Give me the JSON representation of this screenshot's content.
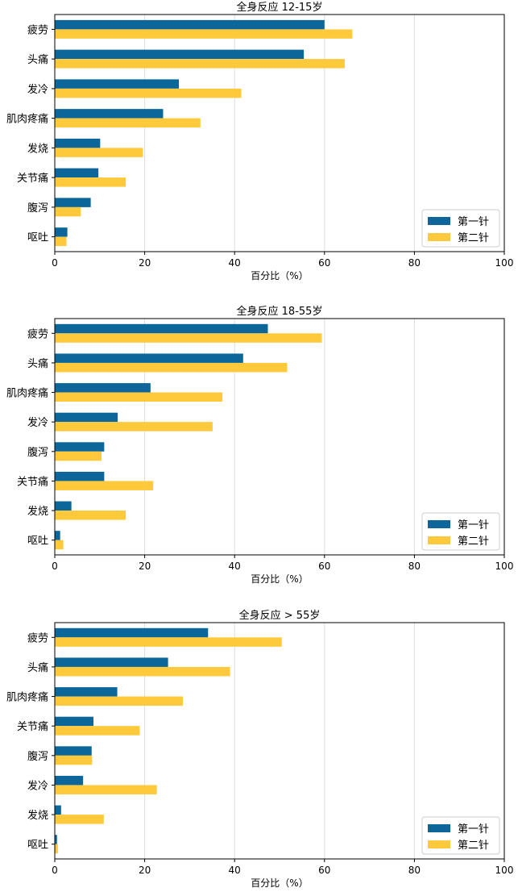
{
  "chart_data": [
    {
      "type": "bar",
      "orientation": "horizontal",
      "title": "全身反应 12-15岁",
      "xlabel": "百分比（%）",
      "ylabel": "",
      "xlim": [
        0,
        100
      ],
      "xticks": [
        0,
        20,
        40,
        60,
        80,
        100
      ],
      "grid": "vertical",
      "legend_position": "bottom-right",
      "categories": [
        "疲劳",
        "头痛",
        "发冷",
        "肌肉疼痛",
        "发烧",
        "关节痛",
        "腹泻",
        "呕吐"
      ],
      "series": [
        {
          "name": "第一针",
          "color": "#0d6699",
          "values": [
            60,
            55.4,
            27.6,
            24.1,
            10.1,
            9.7,
            8.0,
            2.8
          ]
        },
        {
          "name": "第二针",
          "color": "#ffc93c",
          "values": [
            66.2,
            64.5,
            41.5,
            32.4,
            19.6,
            15.8,
            5.8,
            2.6
          ]
        }
      ]
    },
    {
      "type": "bar",
      "orientation": "horizontal",
      "title": "全身反应 18-55岁",
      "xlabel": "百分比（%）",
      "ylabel": "",
      "xlim": [
        0,
        100
      ],
      "xticks": [
        0,
        20,
        40,
        60,
        80,
        100
      ],
      "grid": "vertical",
      "legend_position": "bottom-right",
      "categories": [
        "疲劳",
        "头痛",
        "肌肉疼痛",
        "发冷",
        "腹泻",
        "关节痛",
        "发烧",
        "呕吐"
      ],
      "series": [
        {
          "name": "第一针",
          "color": "#0d6699",
          "values": [
            47.4,
            41.9,
            21.3,
            14.0,
            11.0,
            11.0,
            3.7,
            1.2
          ]
        },
        {
          "name": "第二针",
          "color": "#ffc93c",
          "values": [
            59.4,
            51.7,
            37.3,
            35.1,
            10.4,
            21.9,
            15.8,
            1.9
          ]
        }
      ]
    },
    {
      "type": "bar",
      "orientation": "horizontal",
      "title": "全身反应 > 55岁",
      "xlabel": "百分比（%）",
      "ylabel": "",
      "xlim": [
        0,
        100
      ],
      "xticks": [
        0,
        20,
        40,
        60,
        80,
        100
      ],
      "grid": "vertical",
      "legend_position": "bottom-right",
      "categories": [
        "疲劳",
        "头痛",
        "肌肉疼痛",
        "关节痛",
        "腹泻",
        "发冷",
        "发烧",
        "呕吐"
      ],
      "series": [
        {
          "name": "第一针",
          "color": "#0d6699",
          "values": [
            34.1,
            25.2,
            13.9,
            8.6,
            8.2,
            6.3,
            1.4,
            0.5
          ]
        },
        {
          "name": "第二针",
          "color": "#ffc93c",
          "values": [
            50.5,
            39.0,
            28.5,
            18.9,
            8.3,
            22.7,
            10.9,
            0.7
          ]
        }
      ]
    }
  ]
}
